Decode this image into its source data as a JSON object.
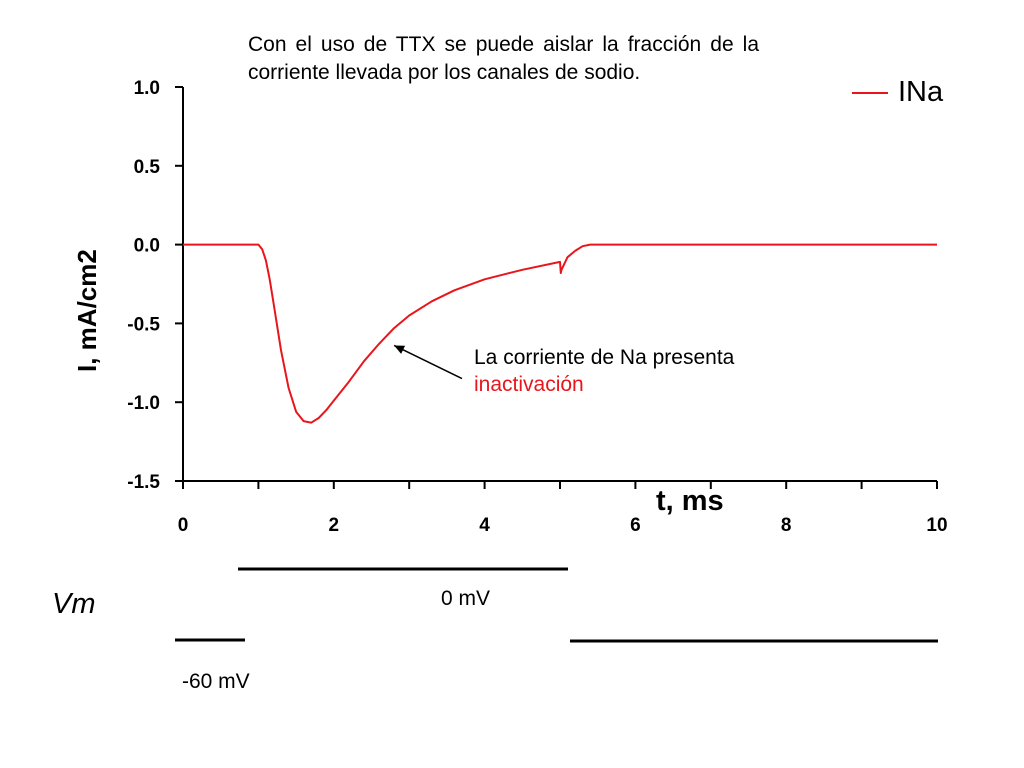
{
  "description": "Con el uso de TTX se puede aislar la fracción de la corriente llevada por los canales de sodio.",
  "annotation": {
    "line1": "La corriente de Na presenta",
    "highlight": "inactivación",
    "arrow_target": [
      2.8,
      -0.64
    ],
    "arrow_tail": [
      3.7,
      -0.85
    ]
  },
  "colors": {
    "trace": "#e8161c",
    "highlight": "#e8161c",
    "axis": "#000000"
  },
  "chart_data": {
    "type": "line",
    "xlabel": "t, ms",
    "ylabel": "I, mA/cm2",
    "xlim": [
      0,
      10
    ],
    "ylim": [
      -1.5,
      1.0
    ],
    "xticks": [
      0,
      2,
      4,
      6,
      8,
      10
    ],
    "xtick_labels": [
      "0",
      "2",
      "4",
      "6",
      "8",
      "10"
    ],
    "yticks": [
      1.0,
      0.5,
      0.0,
      -0.5,
      -1.0,
      -1.5
    ],
    "ytick_labels": [
      "1.0",
      "0.5",
      "0.0",
      "-0.5",
      "-1.0",
      "-1.5"
    ],
    "grid": false,
    "legend_position": "top-right",
    "series": [
      {
        "name": "INa",
        "x": [
          0,
          1.0,
          1.05,
          1.1,
          1.15,
          1.2,
          1.3,
          1.4,
          1.5,
          1.6,
          1.7,
          1.8,
          1.9,
          2.0,
          2.2,
          2.4,
          2.6,
          2.8,
          3.0,
          3.3,
          3.6,
          4.0,
          4.5,
          5.0,
          5.01,
          5.02,
          5.1,
          5.2,
          5.3,
          5.4,
          6.0,
          8.0,
          10.0
        ],
        "y": [
          0,
          0,
          -0.03,
          -0.1,
          -0.22,
          -0.37,
          -0.67,
          -0.91,
          -1.06,
          -1.12,
          -1.13,
          -1.1,
          -1.05,
          -0.99,
          -0.87,
          -0.74,
          -0.63,
          -0.53,
          -0.45,
          -0.36,
          -0.29,
          -0.22,
          -0.16,
          -0.11,
          -0.18,
          -0.16,
          -0.08,
          -0.04,
          -0.01,
          0,
          0,
          0,
          0
        ]
      }
    ]
  },
  "voltage_protocol": {
    "label": "Vm",
    "step_label": "0 mV",
    "hold_label": "-60 mV"
  }
}
